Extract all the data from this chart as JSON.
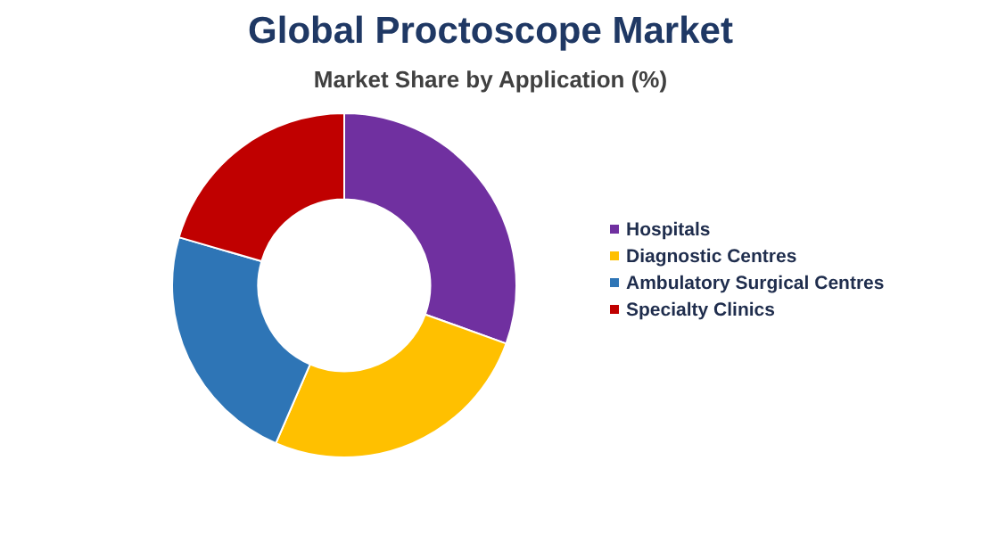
{
  "chart_data": {
    "type": "donut",
    "title": "Global Proctoscope Market",
    "subtitle": "Market Share by Application (%)",
    "categories": [
      "Hospitals",
      "Diagnostic Centres",
      "Ambulatory Surgical Centres",
      "Specialty Clinics"
    ],
    "values": [
      30.5,
      26,
      23,
      20.5
    ],
    "colors": [
      "#7030a0",
      "#ffc000",
      "#2e75b6",
      "#c00000"
    ],
    "legend": "right"
  }
}
